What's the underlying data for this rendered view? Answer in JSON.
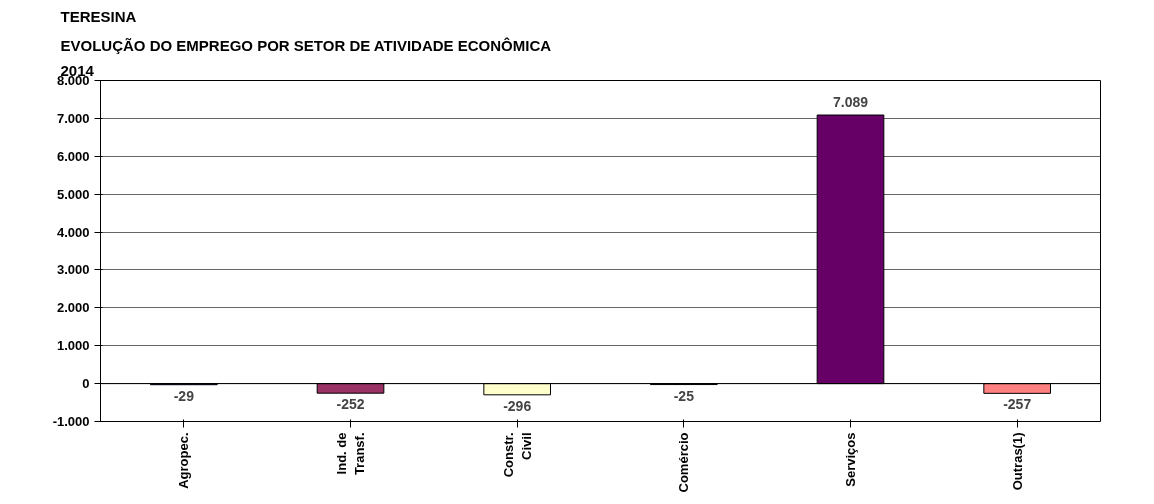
{
  "chart_data": {
    "type": "bar",
    "title": "TERESINA",
    "subtitle": "EVOLUÇÃO DO EMPREGO POR SETOR DE ATIVIDADE ECONÔMICA",
    "annotations": [
      "2014"
    ],
    "categories": [
      "Agropec.",
      "Ind. de\nTransf.",
      "Constr.\nCivil",
      "Comércio",
      "Serviços",
      "Outras(1)"
    ],
    "values": [
      -29,
      -252,
      -296,
      -25,
      7089,
      -257
    ],
    "colors": [
      "#000080",
      "#993366",
      "#ffffcc",
      "#008080",
      "#660066",
      "#ff8080"
    ],
    "value_labels": [
      "-29",
      "-252",
      "-296",
      "-25",
      "7.089",
      "-257"
    ],
    "ylim": [
      -1000,
      8000
    ],
    "yticks": [
      {
        "value": -1000,
        "label": "-1.000"
      },
      0,
      {
        "value": 1000,
        "label": "1.000"
      },
      {
        "value": 2000,
        "label": "2.000"
      },
      {
        "value": 3000,
        "label": "3.000"
      },
      {
        "value": 4000,
        "label": "4.000"
      },
      {
        "value": 5000,
        "label": "5.000"
      },
      {
        "value": 6000,
        "label": "6.000"
      },
      {
        "value": 7000,
        "label": "7.000"
      },
      {
        "value": 8000,
        "label": "8.000"
      }
    ],
    "grid": "y"
  }
}
